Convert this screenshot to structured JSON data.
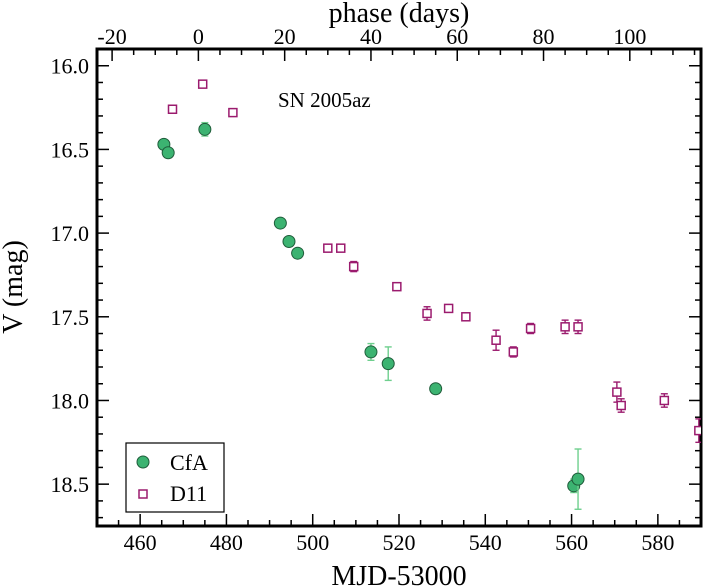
{
  "chart_data": {
    "type": "scatter",
    "title": "",
    "annotation": "SN 2005az",
    "xlabel": "MJD-53000",
    "ylabel": "V (mag)",
    "top_xlabel": "phase (days)",
    "xlim": [
      450,
      590
    ],
    "ylim": [
      18.75,
      15.9
    ],
    "y_inverted": true,
    "top_axis_offset": 473.5,
    "xticks": [
      460,
      480,
      500,
      520,
      540,
      560,
      580
    ],
    "yticks": [
      16.0,
      16.5,
      17.0,
      17.5,
      18.0,
      18.5
    ],
    "ytick_labels": [
      "16.0",
      "16.5",
      "17.0",
      "17.5",
      "18.0",
      "18.5"
    ],
    "top_ticks": [
      -20,
      0,
      20,
      40,
      60,
      80,
      100
    ],
    "legend_position": "bottom-left",
    "series": [
      {
        "name": "CfA",
        "marker": "filled-circle",
        "color": "#3cb371",
        "points": [
          {
            "x": 465.5,
            "y": 16.47,
            "err": 0.02
          },
          {
            "x": 466.5,
            "y": 16.52,
            "err": 0.02
          },
          {
            "x": 475.0,
            "y": 16.38,
            "err": 0.04
          },
          {
            "x": 492.5,
            "y": 16.94,
            "err": 0.02
          },
          {
            "x": 494.5,
            "y": 17.05,
            "err": 0.02
          },
          {
            "x": 496.5,
            "y": 17.12,
            "err": 0.02
          },
          {
            "x": 513.5,
            "y": 17.71,
            "err": 0.05
          },
          {
            "x": 517.5,
            "y": 17.78,
            "err": 0.1
          },
          {
            "x": 528.5,
            "y": 17.93,
            "err": 0.02
          },
          {
            "x": 560.5,
            "y": 18.51,
            "err": 0.04
          },
          {
            "x": 561.5,
            "y": 18.47,
            "err": 0.18
          }
        ]
      },
      {
        "name": "D11",
        "marker": "open-square",
        "color": "#9b1b6e",
        "points": [
          {
            "x": 467.5,
            "y": 16.26,
            "err": 0.01
          },
          {
            "x": 474.5,
            "y": 16.11,
            "err": 0.01
          },
          {
            "x": 481.5,
            "y": 16.28,
            "err": 0.01
          },
          {
            "x": 503.5,
            "y": 17.09,
            "err": 0.02
          },
          {
            "x": 506.5,
            "y": 17.09,
            "err": 0.02
          },
          {
            "x": 509.5,
            "y": 17.2,
            "err": 0.03
          },
          {
            "x": 519.5,
            "y": 17.32,
            "err": 0.02
          },
          {
            "x": 526.5,
            "y": 17.48,
            "err": 0.04
          },
          {
            "x": 531.5,
            "y": 17.45,
            "err": 0.02
          },
          {
            "x": 535.5,
            "y": 17.5,
            "err": 0.02
          },
          {
            "x": 542.5,
            "y": 17.64,
            "err": 0.06
          },
          {
            "x": 546.5,
            "y": 17.71,
            "err": 0.03
          },
          {
            "x": 550.5,
            "y": 17.57,
            "err": 0.03
          },
          {
            "x": 558.5,
            "y": 17.56,
            "err": 0.04
          },
          {
            "x": 561.5,
            "y": 17.56,
            "err": 0.04
          },
          {
            "x": 570.5,
            "y": 17.95,
            "err": 0.06
          },
          {
            "x": 571.5,
            "y": 18.03,
            "err": 0.04
          },
          {
            "x": 581.5,
            "y": 18.0,
            "err": 0.04
          },
          {
            "x": 589.5,
            "y": 18.18,
            "err": 0.07
          }
        ]
      }
    ]
  }
}
